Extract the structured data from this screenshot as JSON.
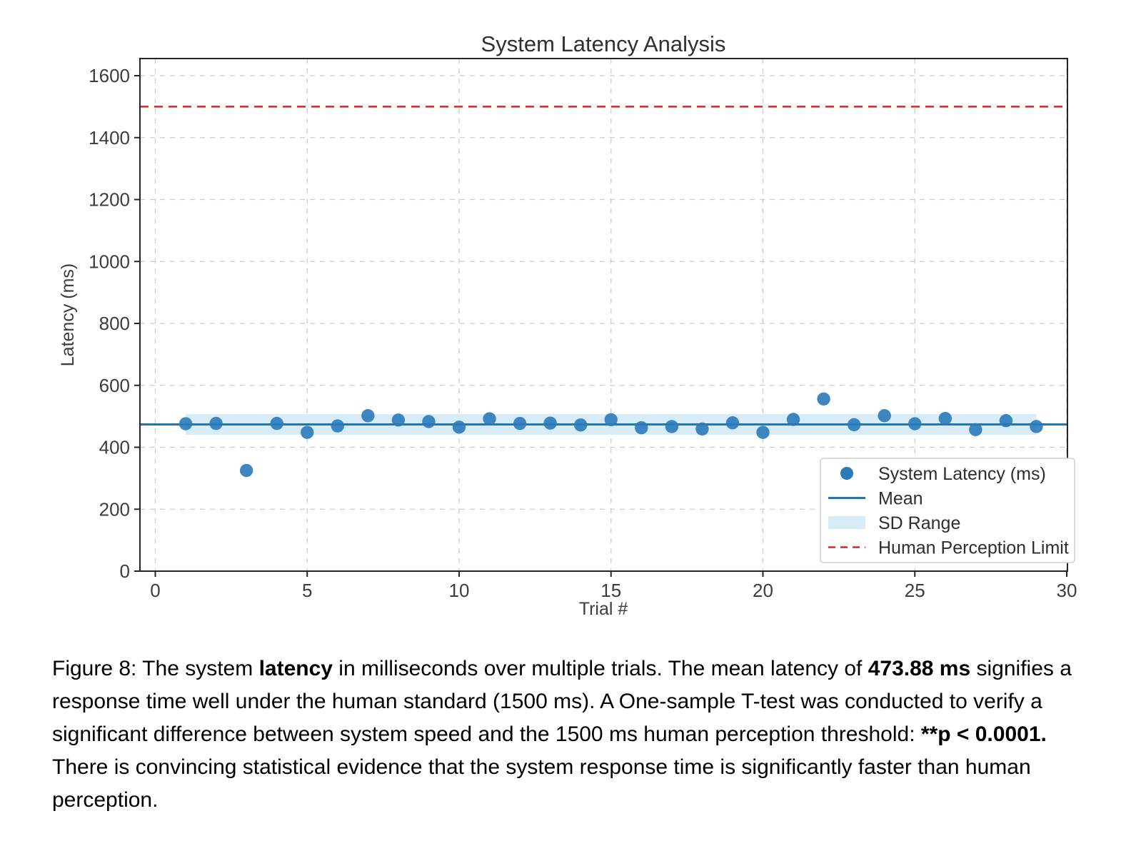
{
  "chart_data": {
    "type": "scatter",
    "title": "System Latency Analysis",
    "xlabel": "Trial #",
    "ylabel": "Latency (ms)",
    "x": [
      1,
      2,
      3,
      4,
      5,
      6,
      7,
      8,
      9,
      10,
      11,
      12,
      13,
      14,
      15,
      16,
      17,
      18,
      19,
      20,
      21,
      22,
      23,
      24,
      25,
      26,
      27,
      28,
      29
    ],
    "y": [
      476,
      477,
      325,
      477,
      448,
      469,
      502,
      488,
      483,
      465,
      492,
      477,
      478,
      472,
      489,
      463,
      467,
      459,
      479,
      448,
      490,
      556,
      473,
      502,
      476,
      493,
      457,
      486,
      467
    ],
    "mean": 473.88,
    "sd": 33.6,
    "sd_band": [
      440.3,
      507.5
    ],
    "human_perception_limit": 1500,
    "xlim": [
      -0.5,
      30.1
    ],
    "ylim": [
      0,
      1655
    ],
    "xticks": [
      0,
      5,
      10,
      15,
      20,
      25,
      30
    ],
    "yticks": [
      0,
      200,
      400,
      600,
      800,
      1000,
      1200,
      1400,
      1600
    ],
    "grid": true,
    "legend": {
      "position": "lower-right",
      "items": [
        {
          "marker": "dot",
          "label": "System Latency (ms)"
        },
        {
          "marker": "line",
          "label": "Mean"
        },
        {
          "marker": "band",
          "label": "SD Range"
        },
        {
          "marker": "dashed-line",
          "label": "Human Perception Limit"
        }
      ]
    },
    "colors": {
      "point": "#2a7ab9",
      "mean_line": "#1f77b4",
      "sd_band": "#d8ecf7",
      "limit_line": "#d62728",
      "grid": "#cdcdcd",
      "spine": "#262626",
      "tick_label": "#3d3d3d"
    }
  },
  "caption": {
    "segments": [
      {
        "text": "Figure 8: The system ",
        "bold": false
      },
      {
        "text": "latency",
        "bold": true
      },
      {
        "text": " in milliseconds over multiple trials. The mean latency of ",
        "bold": false
      },
      {
        "text": "473.88 ms",
        "bold": true
      },
      {
        "text": " signifies a response time well under the human standard (1500 ms). A One-sample T-test was conducted to verify a significant difference between system speed and the 1500 ms human perception threshold: ",
        "bold": false
      },
      {
        "text": "**p < 0.0001.",
        "bold": true
      },
      {
        "text": " There is convincing statistical evidence that the system response time is significantly faster than human perception.",
        "bold": false
      }
    ]
  }
}
